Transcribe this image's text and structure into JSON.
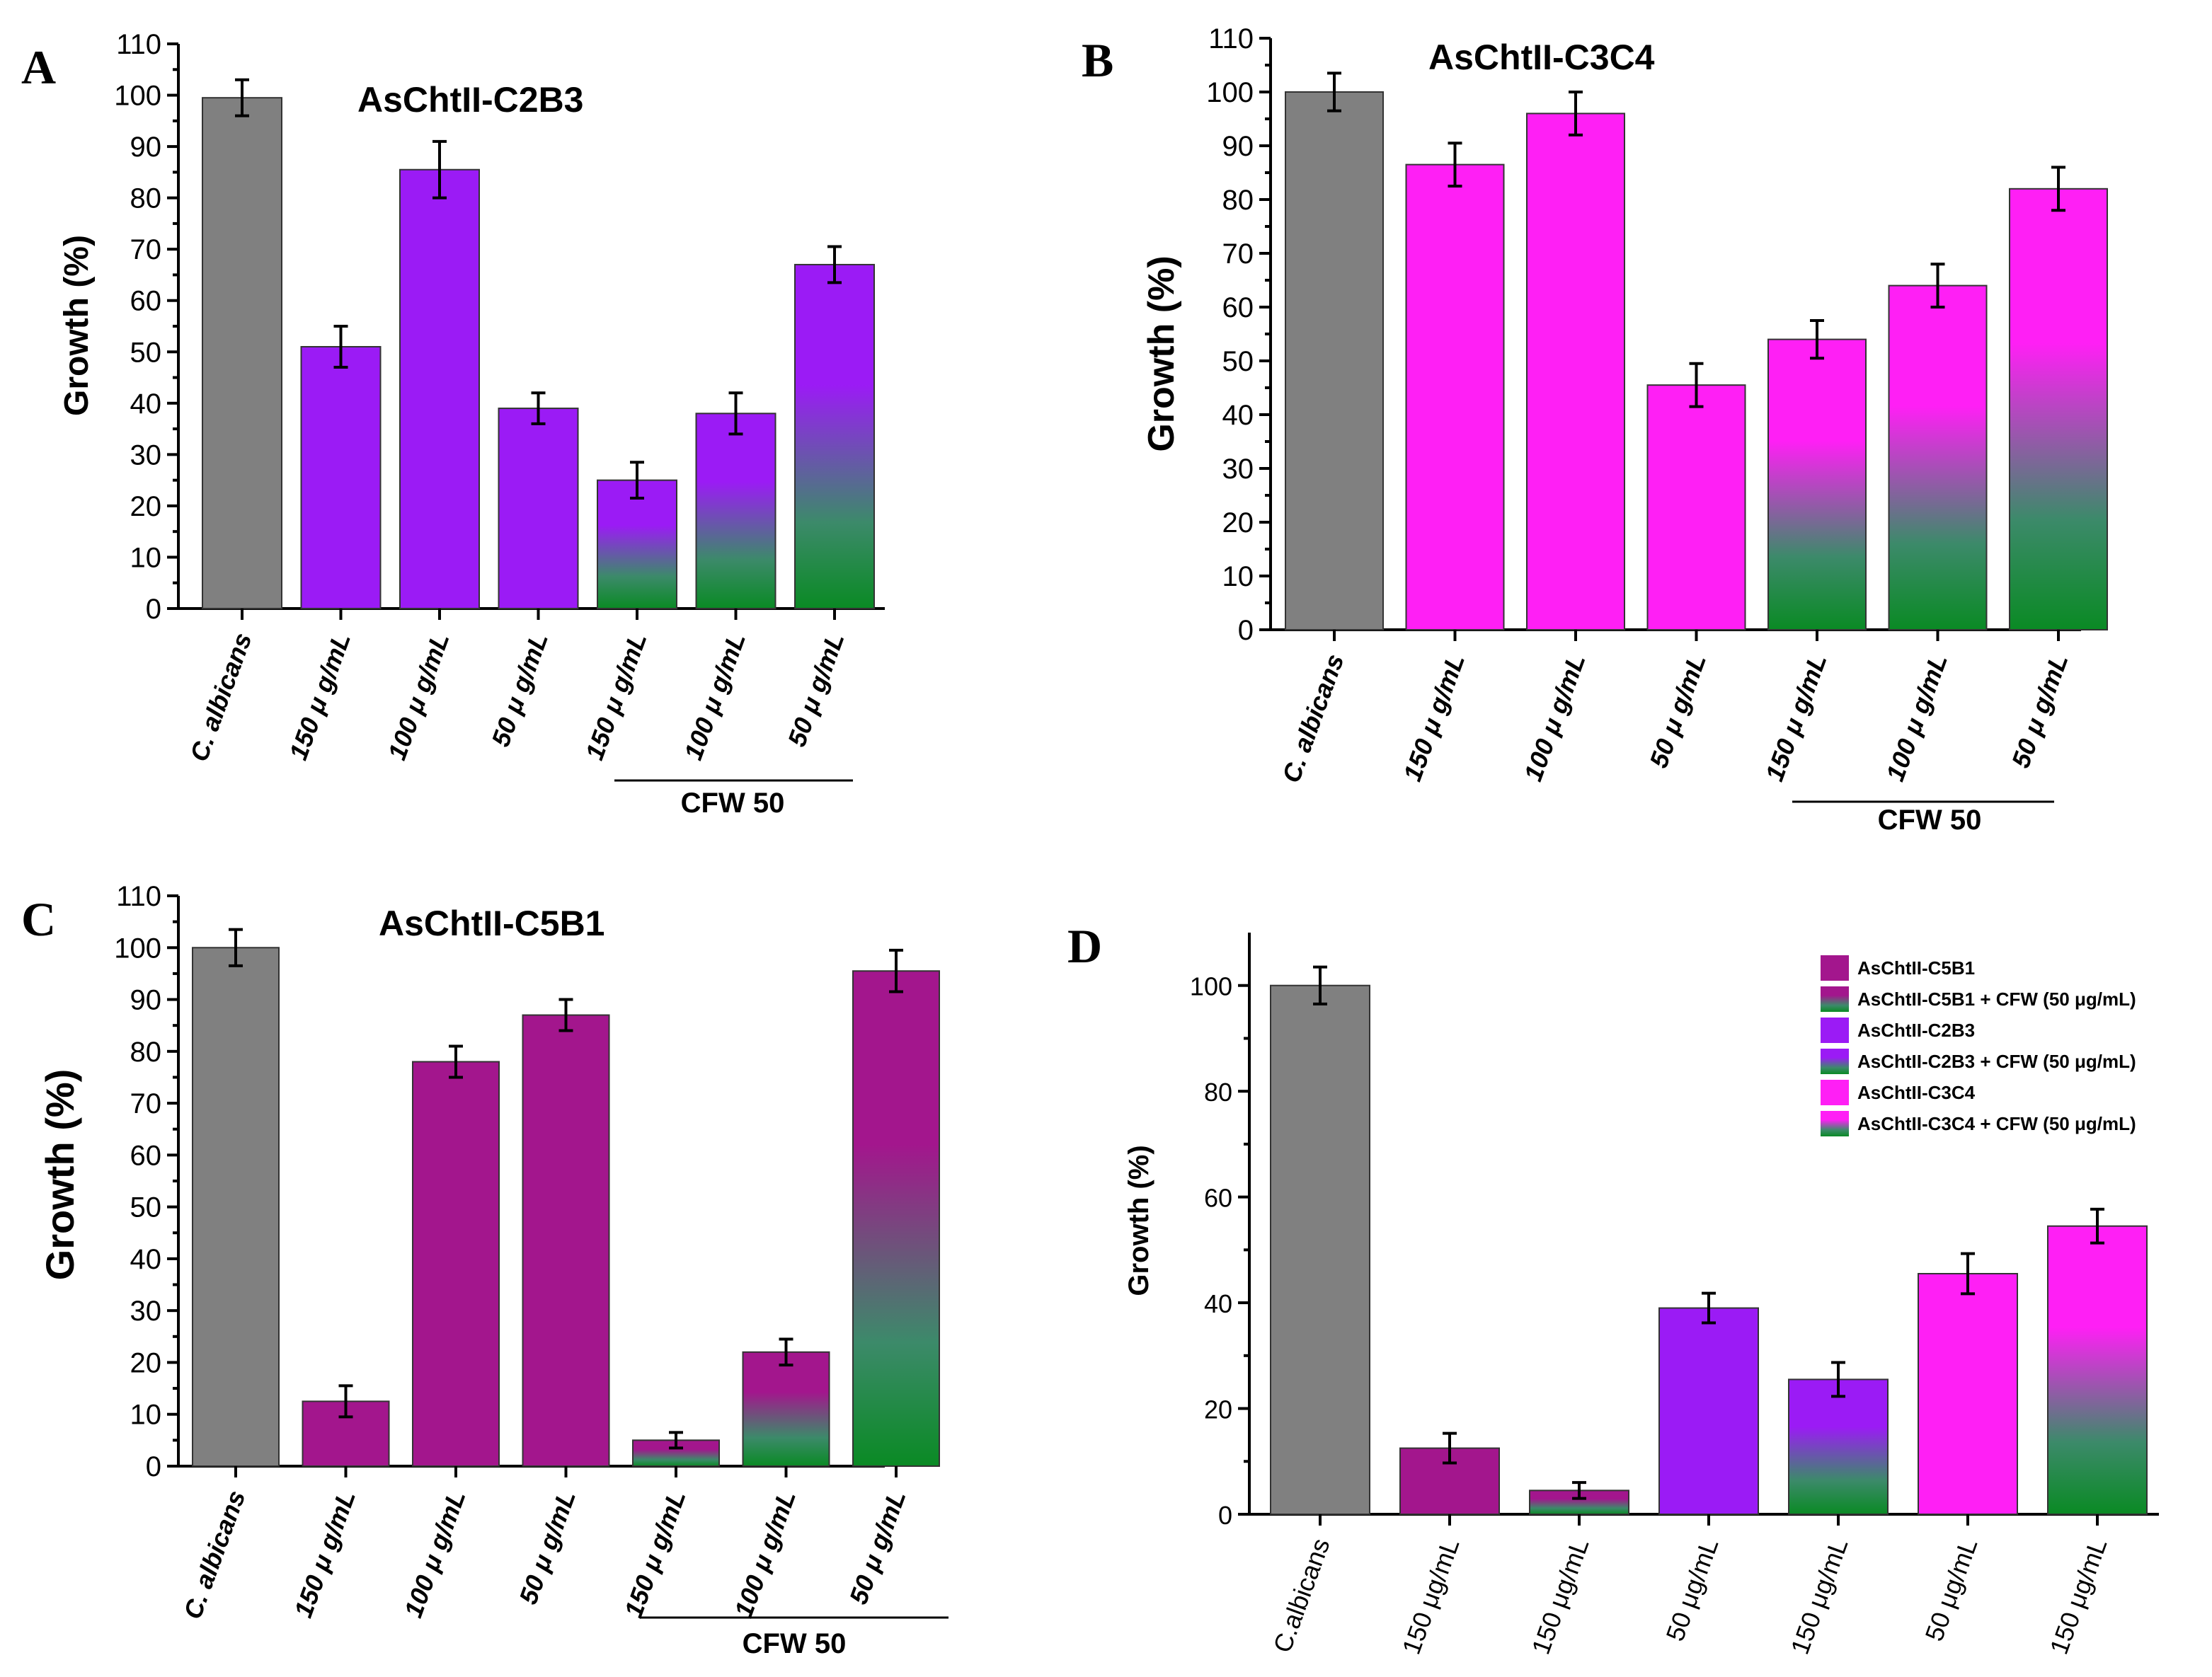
{
  "colors": {
    "control": "#808080",
    "c2b3": "#9b1bf5",
    "c3c4": "#ff1ff5",
    "c5b1": "#a3168d",
    "cfw_green": "#0a8a24"
  },
  "chart_data": [
    {
      "panel": "A",
      "type": "bar",
      "title": "AsChtII-C2B3",
      "ylabel": "Growth (%)",
      "ylim": [
        0,
        110
      ],
      "yticks": [
        0,
        10,
        20,
        30,
        40,
        50,
        60,
        70,
        80,
        90,
        100,
        110
      ],
      "categories": [
        "C. albicans",
        "150 μ g/mL",
        "100 μ g/mL",
        "50 μ g/mL",
        "150 μ g/mL",
        "100 μ g/mL",
        "50 μ g/mL"
      ],
      "values": [
        99.5,
        51,
        85.5,
        39,
        25,
        38,
        67
      ],
      "errors": [
        3.5,
        4,
        5.5,
        3,
        3.5,
        4,
        3.5
      ],
      "kinds": [
        "control",
        "solid",
        "solid",
        "solid",
        "cfw",
        "cfw",
        "cfw"
      ],
      "group_label": "CFW 50",
      "accent": "c2b3"
    },
    {
      "panel": "B",
      "type": "bar",
      "title": "AsChtII-C3C4",
      "ylabel": "Growth (%)",
      "ylim": [
        0,
        110
      ],
      "yticks": [
        0,
        10,
        20,
        30,
        40,
        50,
        60,
        70,
        80,
        90,
        100,
        110
      ],
      "categories": [
        "C. albicans",
        "150 μ g/mL",
        "100 μ g/mL",
        "50 μ g/mL",
        "150 μ g/mL",
        "100 μ g/mL",
        "50 μ g/mL"
      ],
      "values": [
        100,
        86.5,
        96,
        45.5,
        54,
        64,
        82
      ],
      "errors": [
        3.5,
        4,
        4,
        4,
        3.5,
        4,
        4
      ],
      "kinds": [
        "control",
        "solid",
        "solid",
        "solid",
        "cfw",
        "cfw",
        "cfw"
      ],
      "group_label": "CFW 50",
      "accent": "c3c4"
    },
    {
      "panel": "C",
      "type": "bar",
      "title": "AsChtII-C5B1",
      "ylabel": "Growth (%)",
      "ylim": [
        0,
        110
      ],
      "yticks": [
        0,
        10,
        20,
        30,
        40,
        50,
        60,
        70,
        80,
        90,
        100,
        110
      ],
      "categories": [
        "C. albicans",
        "150 μ g/mL",
        "100 μ g/mL",
        "50 μ g/mL",
        "150 μ g/mL",
        "100 μ g/mL",
        "50 μ g/mL"
      ],
      "values": [
        100,
        12.5,
        78,
        87,
        5,
        22,
        95.5
      ],
      "errors": [
        3.5,
        3,
        3,
        3,
        1.5,
        2.5,
        4
      ],
      "kinds": [
        "control",
        "solid",
        "solid",
        "solid",
        "cfw",
        "cfw",
        "cfw"
      ],
      "group_label": "CFW 50",
      "accent": "c5b1"
    },
    {
      "panel": "D",
      "type": "bar",
      "title": "",
      "ylabel": "Growth (%)",
      "ylim": [
        0,
        110
      ],
      "yticks": [
        0,
        20,
        40,
        60,
        80,
        100
      ],
      "categories": [
        "C.albicans",
        "150 μg/mL",
        "150 μg/mL",
        "50 μg/mL",
        "150 μg/mL",
        "50 μg/mL",
        "150 μg/mL"
      ],
      "values": [
        100,
        12.5,
        4.5,
        39,
        25.5,
        45.5,
        54.5
      ],
      "errors": [
        3.5,
        2.8,
        1.5,
        2.8,
        3.2,
        3.8,
        3.2
      ],
      "kinds": [
        "control",
        "solid",
        "cfw",
        "solid",
        "cfw",
        "solid",
        "cfw"
      ],
      "accents": [
        "control",
        "c5b1",
        "c5b1",
        "c2b3",
        "c2b3",
        "c3c4",
        "c3c4"
      ],
      "legend": [
        {
          "label": "AsChtII-C5B1",
          "accent": "c5b1",
          "kind": "solid"
        },
        {
          "label": "AsChtII-C5B1 + CFW (50 μg/mL)",
          "accent": "c5b1",
          "kind": "cfw"
        },
        {
          "label": "AsChtII-C2B3",
          "accent": "c2b3",
          "kind": "solid"
        },
        {
          "label": "AsChtII-C2B3 + CFW (50 μg/mL)",
          "accent": "c2b3",
          "kind": "cfw"
        },
        {
          "label": "AsChtII-C3C4",
          "accent": "c3c4",
          "kind": "solid"
        },
        {
          "label": "AsChtII-C3C4 + CFW (50 μg/mL)",
          "accent": "c3c4",
          "kind": "cfw"
        }
      ]
    }
  ]
}
